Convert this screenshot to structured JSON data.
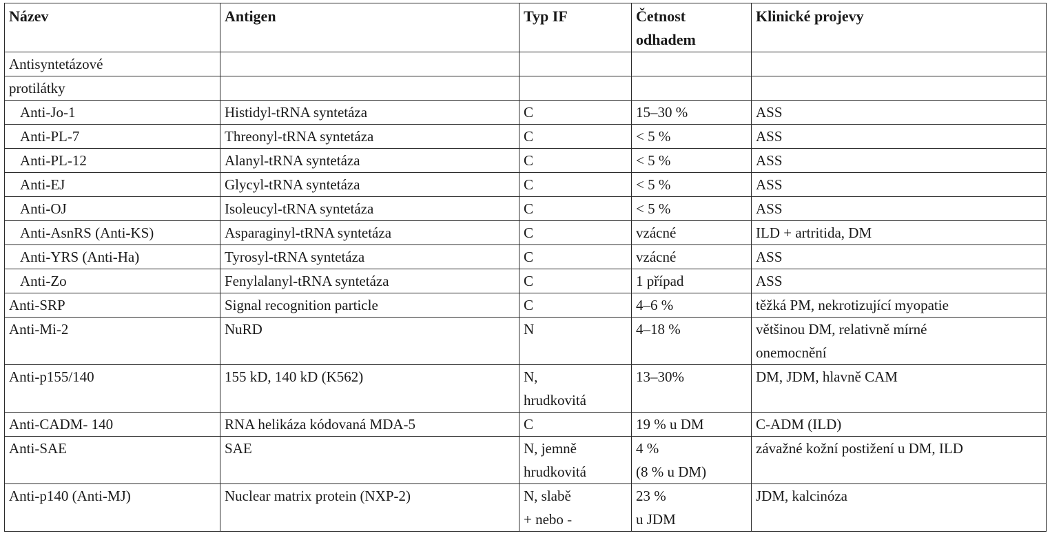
{
  "header": {
    "nazev": "Název",
    "antigen": "Antigen",
    "typ_if": "Typ IF",
    "cetnost": "Četnost\nodhadem",
    "projevy": "Klinické projevy"
  },
  "group": {
    "line1": "Antisyntetázové",
    "line2": "protilátky"
  },
  "rows": [
    {
      "name": "Anti-Jo-1",
      "antigen": "Histidyl-tRNA syntetáza",
      "typ": "C",
      "cetnost": "15–30 %",
      "projevy": "ASS"
    },
    {
      "name": "Anti-PL-7",
      "antigen": "Threonyl-tRNA syntetáza",
      "typ": "C",
      "cetnost": "< 5 %",
      "projevy": "ASS"
    },
    {
      "name": "Anti-PL-12",
      "antigen": "Alanyl-tRNA syntetáza",
      "typ": "C",
      "cetnost": "< 5 %",
      "projevy": "ASS"
    },
    {
      "name": "Anti-EJ",
      "antigen": "Glycyl-tRNA syntetáza",
      "typ": "C",
      "cetnost": "< 5 %",
      "projevy": "ASS"
    },
    {
      "name": "Anti-OJ",
      "antigen": "Isoleucyl-tRNA syntetáza",
      "typ": "C",
      "cetnost": "< 5 %",
      "projevy": "ASS"
    },
    {
      "name": "Anti-AsnRS (Anti-KS)",
      "antigen": "Asparaginyl-tRNA syntetáza",
      "typ": "C",
      "cetnost": "vzácné",
      "projevy": "ILD + artritida, DM"
    },
    {
      "name": "Anti-YRS (Anti-Ha)",
      "antigen": "Tyrosyl-tRNA syntetáza",
      "typ": "C",
      "cetnost": "vzácné",
      "projevy": "ASS"
    },
    {
      "name": "Anti-Zo",
      "antigen": "Fenylalanyl-tRNA syntetáza",
      "typ": "C",
      "cetnost": "1 případ",
      "projevy": "ASS"
    },
    {
      "name": "Anti-SRP",
      "antigen": "Signal recognition particle",
      "typ": "C",
      "cetnost": "4–6 %",
      "projevy": "těžká PM, nekrotizující myopatie"
    },
    {
      "name": "Anti-Mi-2",
      "antigen": "NuRD",
      "typ": "N",
      "cetnost": "4–18 %",
      "projevy": "většinou DM, relativně mírné\nonemocnění"
    },
    {
      "name": "Anti-p155/140",
      "antigen": "155 kD, 140 kD (K562)",
      "typ": "N,\nhrudkovitá",
      "cetnost": "13–30%",
      "projevy": "DM, JDM, hlavně CAM"
    },
    {
      "name": "Anti-CADM- 140",
      "antigen": "RNA helikáza kódovaná MDA-5",
      "typ": "C",
      "cetnost": "19 % u DM",
      "projevy": "C-ADM (ILD)"
    },
    {
      "name": "Anti-SAE",
      "antigen": "SAE",
      "typ": "N, jemně\nhrudkovitá",
      "cetnost": "4 %\n(8 % u DM)",
      "projevy": "závažné kožní postižení u DM, ILD"
    },
    {
      "name": "Anti-p140 (Anti-MJ)",
      "antigen": "Nuclear matrix protein (NXP-2)",
      "typ": "N, slabě\n+ nebo -",
      "cetnost": "23 %\nu JDM",
      "projevy": "JDM, kalcinóza"
    }
  ]
}
